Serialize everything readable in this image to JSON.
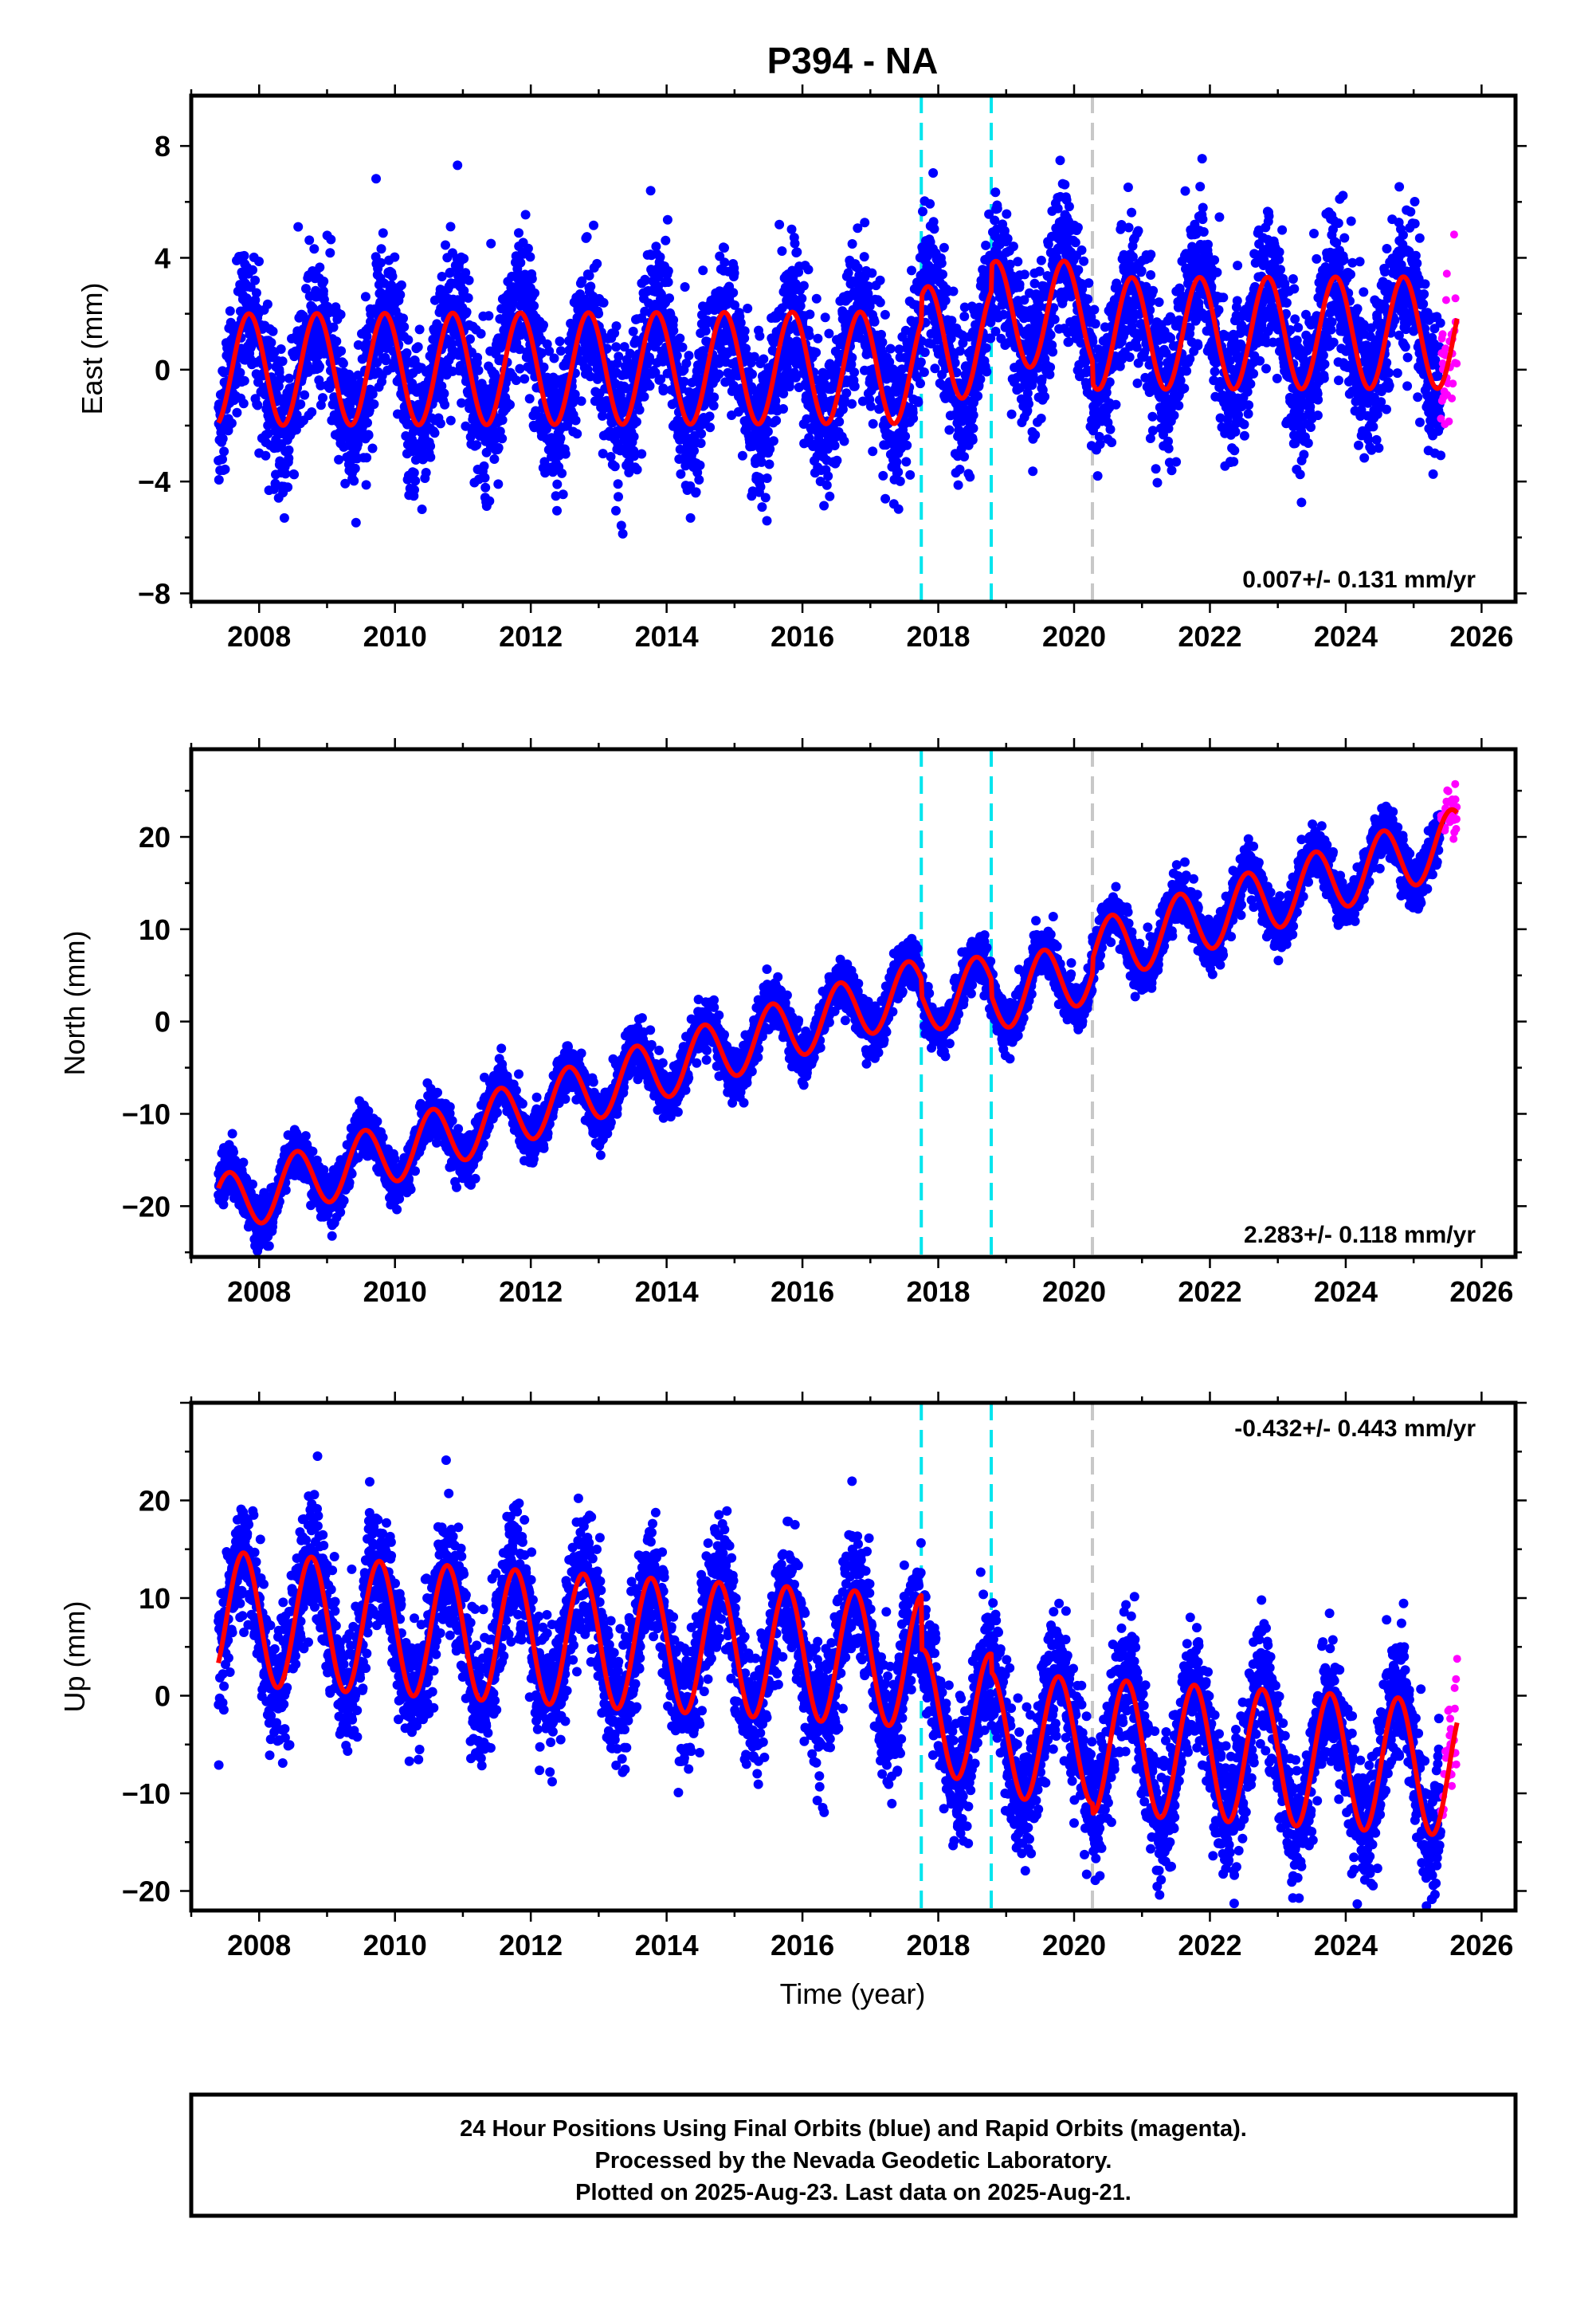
{
  "chart_data": {
    "type": "scatter",
    "title": "P394 - NA",
    "xlabel": "Time (year)",
    "x_ticks": [
      2008,
      2010,
      2012,
      2014,
      2016,
      2018,
      2020,
      2022,
      2024,
      2026
    ],
    "xlim": [
      2007.0,
      2026.5
    ],
    "data_start": 2007.4,
    "data_end": 2025.64,
    "rapid_start": 2025.4,
    "event_lines": [
      {
        "x": 2017.75,
        "color": "#00e5ee"
      },
      {
        "x": 2018.78,
        "color": "#00e5ee"
      },
      {
        "x": 2020.27,
        "color": "#c8c8c8"
      }
    ],
    "colors": {
      "final_orbits": "#0000ff",
      "rapid_orbits": "#ff00ff",
      "model_fit": "#ff0000",
      "frame": "#000000"
    },
    "panels": [
      {
        "ylabel": "East (mm)",
        "ylim": [
          -8.3,
          9.8
        ],
        "y_ticks": [
          -8,
          -4,
          0,
          4,
          8
        ],
        "rate_label": "0.007+/- 0.131 mm/yr",
        "rate_position": "bottom-right",
        "rate_mm_per_yr": 0.007,
        "offsets": [
          0,
          0.9,
          1.9,
          1.2
        ],
        "amplitude": [
          2.0,
          2.0,
          1.9,
          2.0
        ],
        "peak_phase": 0.85,
        "noise": 1.3
      },
      {
        "ylabel": "North (mm)",
        "ylim": [
          -25.5,
          29.5
        ],
        "y_ticks": [
          -20,
          -10,
          0,
          10,
          20
        ],
        "rate_label": "2.283+/- 0.118 mm/yr",
        "rate_position": "bottom-right",
        "rate_mm_per_yr": 2.283,
        "offsets": [
          -20.0,
          -21.8,
          -23.6,
          -22.0
        ],
        "amplitude": [
          3.3,
          3.3,
          3.6,
          3.5
        ],
        "peak_phase": 0.55,
        "noise": 1.3
      },
      {
        "ylabel": "Up (mm)",
        "ylim": [
          -22,
          30
        ],
        "y_ticks": [
          -20,
          -10,
          0,
          10,
          20
        ],
        "rate_label": "-0.432+/- 0.443 mm/yr",
        "rate_position": "top-right",
        "rate_mm_per_yr": -0.432,
        "offsets": [
          8.0,
          2.7,
          0.9,
          0.4
        ],
        "amplitude": [
          6.8,
          6.5,
          6.4,
          6.9
        ],
        "peak_phase": 0.77,
        "noise": 3.2
      }
    ]
  },
  "footer": {
    "line1": "24 Hour Positions Using Final Orbits (blue) and Rapid Orbits (magenta).",
    "line2": "Processed by the Nevada Geodetic Laboratory.",
    "line3": "Plotted on 2025-Aug-23. Last data on 2025-Aug-21."
  }
}
